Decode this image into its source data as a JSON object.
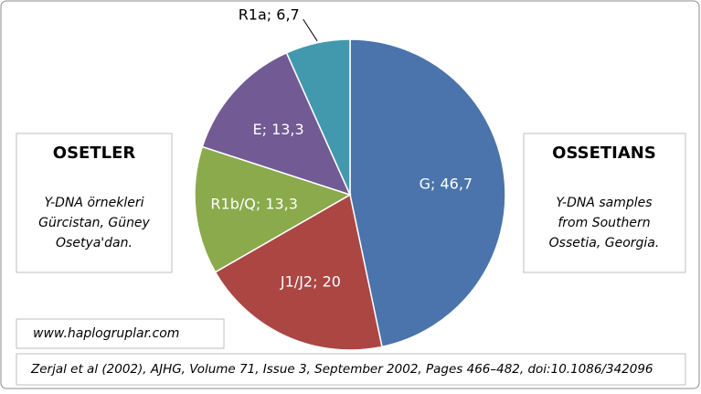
{
  "chart_data": {
    "type": "pie",
    "values": [
      46.7,
      20,
      13.3,
      13.3,
      6.7
    ],
    "value_labels": [
      "G; 46,7",
      "J1/J2; 20",
      "R1b/Q; 13,3",
      "E; 13,3",
      "R1a; 6,7"
    ],
    "colors": [
      "#4a74ab",
      "#ab4643",
      "#8aaa4c",
      "#725a95",
      "#4299ad"
    ],
    "boxes": [
      {
        "title": "OSETLER",
        "lines": [
          "Y-DNA örnekleri",
          "Gürcistan, Güney",
          "Osetya'dan."
        ]
      },
      {
        "title": "OSSETIANS",
        "lines": [
          "Y-DNA samples",
          "from Southern",
          "Ossetia, Georgia."
        ]
      }
    ],
    "website": "www.haplogruplar.com",
    "source": "Zerjal et al (2002), AJHG, Volume 71, Issue 3, September 2002, Pages 466–482, doi:10.1086/342096"
  }
}
